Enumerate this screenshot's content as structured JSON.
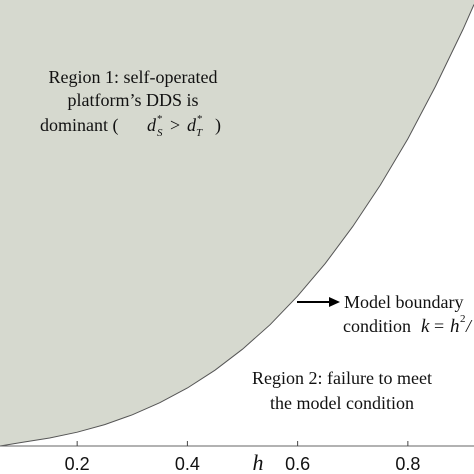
{
  "chart_data": {
    "type": "area",
    "xlabel": "h",
    "ylabel": "",
    "xlim": [
      0.06,
      0.92
    ],
    "ylim": [
      0,
      1
    ],
    "x_ticks": [
      {
        "value": 0.2,
        "label": "0.2"
      },
      {
        "value": 0.4,
        "label": "0.4"
      },
      {
        "value": 0.6,
        "label": "0.6"
      },
      {
        "value": 0.8,
        "label": "0.8"
      }
    ],
    "series": [
      {
        "fill": "#d6d9cf",
        "x": [
          0.06,
          0.1,
          0.15,
          0.2,
          0.25,
          0.3,
          0.35,
          0.4,
          0.45,
          0.5,
          0.55,
          0.6,
          0.65,
          0.7,
          0.75,
          0.8,
          0.85,
          0.9,
          0.92
        ],
        "values": [
          0.0,
          0.008,
          0.018,
          0.031,
          0.048,
          0.07,
          0.097,
          0.13,
          0.17,
          0.217,
          0.272,
          0.336,
          0.409,
          0.492,
          0.585,
          0.689,
          0.806,
          0.934,
          0.99
        ]
      }
    ],
    "annotations": {
      "region1": {
        "line1": "Region 1: self-operated",
        "line2": "platform’s DDS is",
        "line3_text": "dominant (",
        "d": "d",
        "star": "*",
        "sub_s": "S",
        "gt": ">",
        "sub_t": "T",
        "close": ")"
      },
      "boundary": {
        "line1": "Model boundary",
        "line2_text": "condition",
        "k": "k",
        "eq": "=",
        "h": "h",
        "sq": "2",
        "trail": "/"
      },
      "region2": {
        "line1": "Region 2: failure to meet",
        "line2": "the model condition"
      }
    }
  }
}
